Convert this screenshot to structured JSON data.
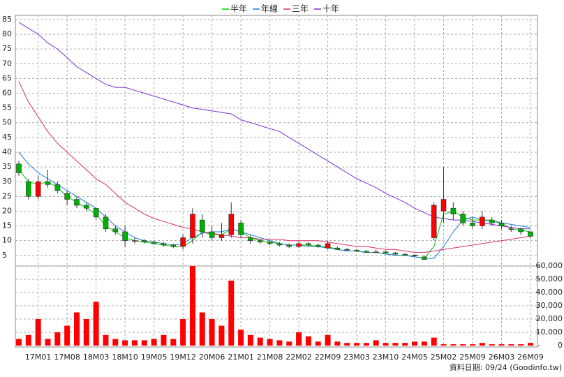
{
  "chart_data": {
    "type": "candlestick",
    "categories": [
      null,
      null,
      "17M01",
      null,
      null,
      "17M08",
      null,
      null,
      "18M03",
      null,
      null,
      "18M10",
      null,
      null,
      "19M05",
      null,
      null,
      "19M12",
      null,
      null,
      "20M06",
      null,
      null,
      "21M01",
      null,
      null,
      "21M08",
      null,
      null,
      "22M02",
      null,
      null,
      "22M09",
      null,
      null,
      "23M03",
      null,
      null,
      "23M10",
      null,
      null,
      "24M05",
      null,
      null,
      "25M02",
      null,
      null,
      "25M09",
      null,
      null,
      "26M03",
      null,
      null,
      "26M09"
    ],
    "open": [
      36,
      30,
      25,
      30,
      29,
      26,
      24,
      22,
      21,
      18,
      14,
      13,
      10,
      10,
      9.5,
      9,
      8.5,
      8,
      11,
      17,
      13,
      11,
      12,
      16,
      11,
      10,
      9.5,
      9,
      8.5,
      8,
      9,
      8.5,
      7.5,
      7.5,
      7,
      6.8,
      6.4,
      6,
      6.2,
      5.8,
      5.4,
      5.1,
      4.5,
      11,
      20,
      21,
      19,
      16,
      15,
      17,
      16,
      14,
      14,
      13
    ],
    "high": [
      37,
      31,
      32,
      34,
      30,
      27,
      25,
      23,
      21,
      19,
      15,
      15,
      11,
      10.5,
      10,
      9.5,
      9,
      12,
      21,
      19,
      15,
      16,
      23,
      17,
      12,
      10.5,
      10,
      9.5,
      9,
      10,
      9.5,
      9,
      10,
      8,
      7.5,
      7.2,
      6.8,
      7,
      6.5,
      6.2,
      5.8,
      5.4,
      5,
      23,
      35,
      23,
      20,
      18,
      20,
      18,
      17,
      15,
      14.5,
      13
    ],
    "low": [
      32,
      24,
      24,
      28,
      26,
      22,
      21,
      20,
      17,
      13,
      12,
      8,
      9,
      9,
      8.5,
      8,
      7.5,
      7,
      9,
      11,
      10,
      10,
      11,
      11,
      9,
      9,
      8.5,
      8,
      7.5,
      7.5,
      8,
      7.5,
      7,
      6.8,
      6.5,
      6.2,
      5.8,
      5.8,
      5.6,
      5.2,
      4.9,
      4.5,
      3.4,
      10,
      16,
      17,
      15,
      14,
      14,
      15,
      14,
      13,
      12,
      11
    ],
    "close": [
      33,
      25,
      30,
      29,
      27,
      24,
      22,
      21,
      18,
      14,
      13,
      10,
      10,
      9.5,
      9,
      8.5,
      8,
      11,
      19,
      13,
      11,
      12,
      19,
      12,
      10,
      9.5,
      9,
      8.5,
      8,
      9,
      8.5,
      8,
      9,
      7,
      6.8,
      6.4,
      6,
      6.2,
      5.8,
      5.4,
      5.1,
      4.8,
      3.6,
      22,
      24,
      19,
      16,
      15,
      18,
      16,
      15,
      14,
      13,
      11.5
    ],
    "up_color": "#ff0000",
    "down_color": "#00b000",
    "series": [
      {
        "name": "半年",
        "color": "#00cc00",
        "values": [
          34,
          30,
          29,
          30,
          28,
          25,
          23,
          21,
          19,
          15,
          13,
          11,
          10,
          9.5,
          9,
          8.5,
          8,
          8,
          10,
          13,
          12,
          12,
          14,
          13,
          11,
          10,
          9.5,
          9,
          8.5,
          8.5,
          8.5,
          8,
          8,
          7,
          6.5,
          6.5,
          6,
          6,
          5.5,
          5,
          5,
          4.5,
          4,
          8,
          19,
          20,
          18,
          17,
          17,
          17,
          16,
          14,
          13.5,
          13
        ]
      },
      {
        "name": "年線",
        "color": "#1e7fd8",
        "values": [
          40,
          36,
          33,
          31,
          29,
          27,
          25,
          23,
          21,
          18,
          15,
          13,
          11,
          10,
          9.5,
          9,
          8.5,
          9,
          11,
          12.5,
          13,
          13,
          14,
          13,
          12,
          11,
          10,
          9,
          8.5,
          8.5,
          8,
          8,
          7.5,
          7,
          6.5,
          6.5,
          6,
          6,
          5.5,
          5,
          5,
          4.5,
          4,
          4,
          8,
          13,
          17,
          18,
          17,
          16.5,
          16,
          15.5,
          15,
          14.5
        ]
      },
      {
        "name": "三年",
        "color": "#d8306a",
        "values": [
          64,
          57,
          52,
          47,
          43,
          40,
          37,
          34,
          31,
          29,
          26,
          23,
          21,
          19,
          17.5,
          16.5,
          15.5,
          14.5,
          14,
          13,
          12.5,
          12,
          11.5,
          11,
          11,
          10.5,
          10.5,
          10.5,
          10,
          10,
          10,
          10,
          9.5,
          9,
          8.5,
          8,
          8,
          7.5,
          7,
          7,
          6.5,
          6,
          6,
          6.5,
          7,
          7.5,
          8,
          8.5,
          9,
          9.5,
          10,
          10.5,
          11,
          11.5
        ]
      },
      {
        "name": "十年",
        "color": "#7a2fd0",
        "values": [
          84,
          82,
          80,
          77,
          75,
          72,
          69,
          67,
          65,
          63,
          62,
          62,
          61,
          60,
          59,
          58,
          57,
          56,
          55,
          54.5,
          54,
          53.5,
          53,
          51,
          50,
          49,
          48,
          47,
          45,
          43,
          41,
          39,
          37,
          35,
          33,
          31,
          29.5,
          28,
          26,
          24.5,
          23,
          21,
          19.5,
          18,
          17.5,
          17,
          17,
          16.5,
          16,
          15.5,
          15,
          14.5,
          14,
          14
        ]
      }
    ],
    "volume": {
      "color": "#ff0000",
      "axis": "y2",
      "values": [
        5000,
        8000,
        20000,
        5000,
        10000,
        15000,
        25000,
        20000,
        33000,
        8000,
        5000,
        4000,
        4000,
        4000,
        5000,
        8000,
        5000,
        20000,
        60000,
        25000,
        20000,
        15000,
        49000,
        12000,
        8000,
        6000,
        5000,
        4000,
        3000,
        10000,
        7000,
        3000,
        8000,
        3000,
        2000,
        2000,
        2000,
        4000,
        2000,
        2000,
        2000,
        3000,
        3000,
        6000,
        1000,
        1000,
        1000,
        1000,
        2000,
        1000,
        1000,
        1000,
        1000,
        2000
      ]
    },
    "ylim": [
      1.4,
      86.4
    ],
    "yticks": [
      5,
      10,
      15,
      20,
      25,
      30,
      35,
      40,
      45,
      50,
      55,
      60,
      65,
      70,
      75,
      80,
      85
    ],
    "y2lim": [
      0,
      60000
    ],
    "y2ticks": [
      0,
      {
        "value": 10000,
        "label": "10,000"
      },
      {
        "value": 20000,
        "label": "20,000"
      },
      {
        "value": 30000,
        "label": "30,000"
      },
      {
        "value": 40000,
        "label": "40,000"
      },
      {
        "value": 50000,
        "label": "50,000"
      },
      {
        "value": 60000,
        "label": "60,000"
      }
    ],
    "grid": true,
    "legend": "top",
    "note": "資料日期: 09/24 (Goodinfo.tw)"
  }
}
